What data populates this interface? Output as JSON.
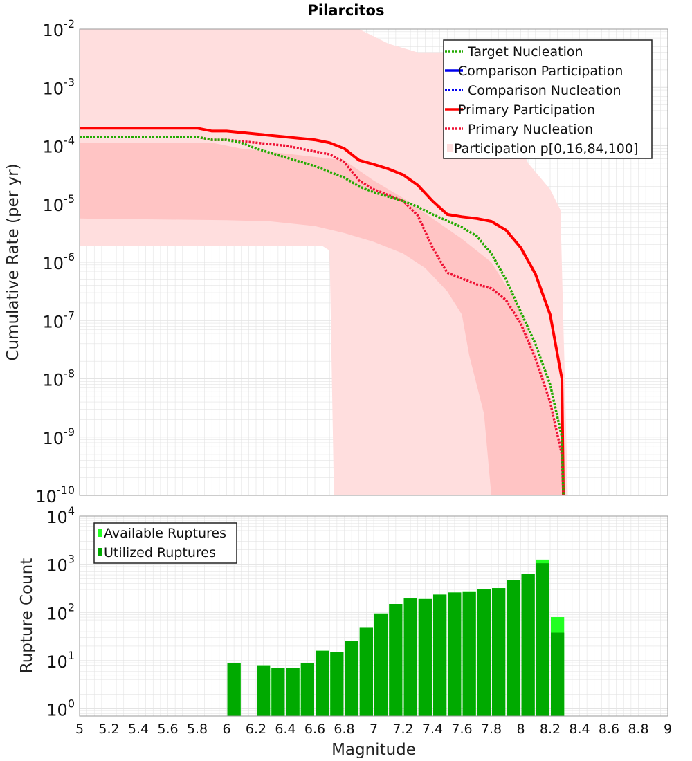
{
  "title": "Pilarcitos",
  "colors": {
    "target_nucleation": "#22aa00",
    "comparison": "#0000ee",
    "primary": "#ff0000",
    "primary_nucleation": "#ee1133",
    "band_outer": "#ffdede",
    "band_inner": "#ffc4c4",
    "available": "#22ff22",
    "utilized": "#00aa00",
    "grid": "#e3e3e3"
  },
  "chart_data": [
    {
      "type": "line",
      "title": "Pilarcitos",
      "xlabel": "",
      "ylabel": "Cumulative Rate (per yr)",
      "xlim": [
        5,
        9
      ],
      "ylim_log10": [
        -10,
        -2
      ],
      "grid": true,
      "legend_position": "top-right",
      "y_ticks": [
        {
          "base": "10",
          "exp": "-2"
        },
        {
          "base": "10",
          "exp": "-3"
        },
        {
          "base": "10",
          "exp": "-4"
        },
        {
          "base": "10",
          "exp": "-5"
        },
        {
          "base": "10",
          "exp": "-6"
        },
        {
          "base": "10",
          "exp": "-7"
        },
        {
          "base": "10",
          "exp": "-8"
        },
        {
          "base": "10",
          "exp": "-9"
        },
        {
          "base": "10",
          "exp": "-10"
        }
      ],
      "legend": [
        {
          "label": "Target Nucleation",
          "style": "dotted",
          "color_key": "target_nucleation"
        },
        {
          "label": "Comparison Participation",
          "style": "solid",
          "color_key": "comparison"
        },
        {
          "label": "Comparison Nucleation",
          "style": "dotted",
          "color_key": "comparison"
        },
        {
          "label": "Primary Participation",
          "style": "solid",
          "color_key": "primary"
        },
        {
          "label": "Primary Nucleation",
          "style": "dotted",
          "color_key": "primary_nucleation"
        },
        {
          "label": "Participation p[0,16,84,100]",
          "style": "band",
          "color_key": "band_outer"
        }
      ],
      "bands": {
        "outer_upper": [
          [
            5.0,
            -2.0
          ],
          [
            6.9,
            -2.0
          ],
          [
            7.1,
            -2.25
          ],
          [
            7.3,
            -2.4
          ],
          [
            7.8,
            -2.4
          ],
          [
            7.85,
            -2.8
          ],
          [
            7.95,
            -3.5
          ],
          [
            8.0,
            -4.0
          ],
          [
            8.05,
            -4.3
          ],
          [
            8.15,
            -4.6
          ],
          [
            8.2,
            -4.75
          ],
          [
            8.27,
            -5.1
          ],
          [
            8.32,
            -10.0
          ]
        ],
        "outer_lower": [
          [
            5.0,
            -5.72
          ],
          [
            6.65,
            -5.72
          ],
          [
            6.7,
            -5.8
          ],
          [
            6.73,
            -10.0
          ]
        ],
        "inner_upper": [
          [
            5.0,
            -3.95
          ],
          [
            5.9,
            -3.95
          ],
          [
            6.1,
            -4.05
          ],
          [
            6.8,
            -4.25
          ],
          [
            7.0,
            -4.6
          ],
          [
            7.2,
            -4.9
          ],
          [
            7.4,
            -5.25
          ],
          [
            7.6,
            -5.6
          ],
          [
            7.8,
            -6.0
          ],
          [
            7.95,
            -6.6
          ],
          [
            8.05,
            -7.2
          ],
          [
            8.15,
            -7.9
          ],
          [
            8.22,
            -8.6
          ],
          [
            8.28,
            -9.3
          ],
          [
            8.3,
            -10.0
          ]
        ],
        "inner_lower": [
          [
            5.0,
            -5.25
          ],
          [
            6.0,
            -5.28
          ],
          [
            6.3,
            -5.3
          ],
          [
            6.6,
            -5.38
          ],
          [
            6.8,
            -5.5
          ],
          [
            7.0,
            -5.65
          ],
          [
            7.2,
            -5.85
          ],
          [
            7.35,
            -6.1
          ],
          [
            7.5,
            -6.5
          ],
          [
            7.6,
            -6.9
          ],
          [
            7.65,
            -7.6
          ],
          [
            7.75,
            -8.6
          ],
          [
            7.8,
            -10.0
          ]
        ]
      },
      "series": [
        {
          "name": "Primary Participation",
          "style": "solid",
          "color_key": "primary",
          "points": [
            [
              5.0,
              -3.7
            ],
            [
              5.8,
              -3.7
            ],
            [
              5.9,
              -3.75
            ],
            [
              6.0,
              -3.75
            ],
            [
              6.2,
              -3.8
            ],
            [
              6.4,
              -3.85
            ],
            [
              6.6,
              -3.9
            ],
            [
              6.7,
              -3.95
            ],
            [
              6.8,
              -4.05
            ],
            [
              6.9,
              -4.25
            ],
            [
              7.0,
              -4.32
            ],
            [
              7.1,
              -4.4
            ],
            [
              7.2,
              -4.5
            ],
            [
              7.3,
              -4.68
            ],
            [
              7.4,
              -4.95
            ],
            [
              7.5,
              -5.18
            ],
            [
              7.6,
              -5.22
            ],
            [
              7.7,
              -5.25
            ],
            [
              7.8,
              -5.3
            ],
            [
              7.9,
              -5.45
            ],
            [
              8.0,
              -5.75
            ],
            [
              8.1,
              -6.2
            ],
            [
              8.2,
              -6.9
            ],
            [
              8.28,
              -8.0
            ],
            [
              8.29,
              -10.0
            ]
          ]
        },
        {
          "name": "Primary Nucleation",
          "style": "dotted",
          "color_key": "primary_nucleation",
          "points": [
            [
              5.0,
              -3.85
            ],
            [
              5.8,
              -3.85
            ],
            [
              5.9,
              -3.9
            ],
            [
              6.0,
              -3.9
            ],
            [
              6.2,
              -3.95
            ],
            [
              6.4,
              -4.0
            ],
            [
              6.6,
              -4.1
            ],
            [
              6.7,
              -4.15
            ],
            [
              6.8,
              -4.28
            ],
            [
              6.9,
              -4.6
            ],
            [
              7.0,
              -4.75
            ],
            [
              7.1,
              -4.85
            ],
            [
              7.2,
              -4.95
            ],
            [
              7.3,
              -5.2
            ],
            [
              7.4,
              -5.75
            ],
            [
              7.5,
              -6.18
            ],
            [
              7.6,
              -6.28
            ],
            [
              7.7,
              -6.38
            ],
            [
              7.8,
              -6.45
            ],
            [
              7.9,
              -6.65
            ],
            [
              8.0,
              -7.05
            ],
            [
              8.1,
              -7.65
            ],
            [
              8.2,
              -8.4
            ],
            [
              8.28,
              -9.3
            ],
            [
              8.29,
              -10.0
            ]
          ]
        },
        {
          "name": "Target Nucleation",
          "style": "dotted",
          "color_key": "target_nucleation",
          "points": [
            [
              5.0,
              -3.85
            ],
            [
              5.8,
              -3.85
            ],
            [
              5.9,
              -3.9
            ],
            [
              6.0,
              -3.9
            ],
            [
              6.1,
              -3.95
            ],
            [
              6.2,
              -4.05
            ],
            [
              6.4,
              -4.2
            ],
            [
              6.6,
              -4.35
            ],
            [
              6.8,
              -4.55
            ],
            [
              6.9,
              -4.7
            ],
            [
              7.0,
              -4.8
            ],
            [
              7.2,
              -4.95
            ],
            [
              7.3,
              -5.05
            ],
            [
              7.4,
              -5.18
            ],
            [
              7.6,
              -5.4
            ],
            [
              7.7,
              -5.55
            ],
            [
              7.8,
              -5.85
            ],
            [
              7.9,
              -6.3
            ],
            [
              8.0,
              -6.85
            ],
            [
              8.1,
              -7.4
            ],
            [
              8.2,
              -8.1
            ],
            [
              8.28,
              -9.0
            ],
            [
              8.29,
              -10.0
            ]
          ]
        }
      ]
    },
    {
      "type": "bar",
      "title": "",
      "xlabel": "Magnitude",
      "ylabel": "Rupture Count",
      "xlim": [
        5,
        9
      ],
      "ylim_log10": [
        -0.15,
        4
      ],
      "grid": true,
      "legend_position": "top-left",
      "x_ticks": [
        "5",
        "5.2",
        "5.4",
        "5.6",
        "5.8",
        "6",
        "6.2",
        "6.4",
        "6.6",
        "6.8",
        "7",
        "7.2",
        "7.4",
        "7.6",
        "7.8",
        "8",
        "8.2",
        "8.4",
        "8.6",
        "8.8",
        "9"
      ],
      "y_ticks": [
        {
          "base": "10",
          "exp": "4"
        },
        {
          "base": "10",
          "exp": "3"
        },
        {
          "base": "10",
          "exp": "2"
        },
        {
          "base": "10",
          "exp": "1"
        },
        {
          "base": "10",
          "exp": "0"
        }
      ],
      "legend": [
        {
          "label": "Available Ruptures",
          "color_key": "available"
        },
        {
          "label": "Utilized Ruptures",
          "color_key": "utilized"
        }
      ],
      "bin_width": 0.1,
      "bins": [
        {
          "center": 6.05,
          "available": 9,
          "utilized": 9
        },
        {
          "center": 6.25,
          "available": 8,
          "utilized": 8
        },
        {
          "center": 6.35,
          "available": 7,
          "utilized": 7
        },
        {
          "center": 6.45,
          "available": 7,
          "utilized": 7
        },
        {
          "center": 6.55,
          "available": 9,
          "utilized": 9
        },
        {
          "center": 6.65,
          "available": 16,
          "utilized": 16
        },
        {
          "center": 6.75,
          "available": 15,
          "utilized": 15
        },
        {
          "center": 6.85,
          "available": 26,
          "utilized": 26
        },
        {
          "center": 6.95,
          "available": 48,
          "utilized": 48
        },
        {
          "center": 7.05,
          "available": 95,
          "utilized": 95
        },
        {
          "center": 7.15,
          "available": 150,
          "utilized": 150
        },
        {
          "center": 7.25,
          "available": 195,
          "utilized": 195
        },
        {
          "center": 7.35,
          "available": 190,
          "utilized": 190
        },
        {
          "center": 7.45,
          "available": 235,
          "utilized": 235
        },
        {
          "center": 7.55,
          "available": 260,
          "utilized": 260
        },
        {
          "center": 7.65,
          "available": 275,
          "utilized": 265
        },
        {
          "center": 7.75,
          "available": 300,
          "utilized": 300
        },
        {
          "center": 7.85,
          "available": 320,
          "utilized": 320
        },
        {
          "center": 7.95,
          "available": 470,
          "utilized": 470
        },
        {
          "center": 8.05,
          "available": 640,
          "utilized": 640
        },
        {
          "center": 8.15,
          "available": 1250,
          "utilized": 1050
        },
        {
          "center": 8.25,
          "available": 80,
          "utilized": 38
        }
      ]
    }
  ]
}
